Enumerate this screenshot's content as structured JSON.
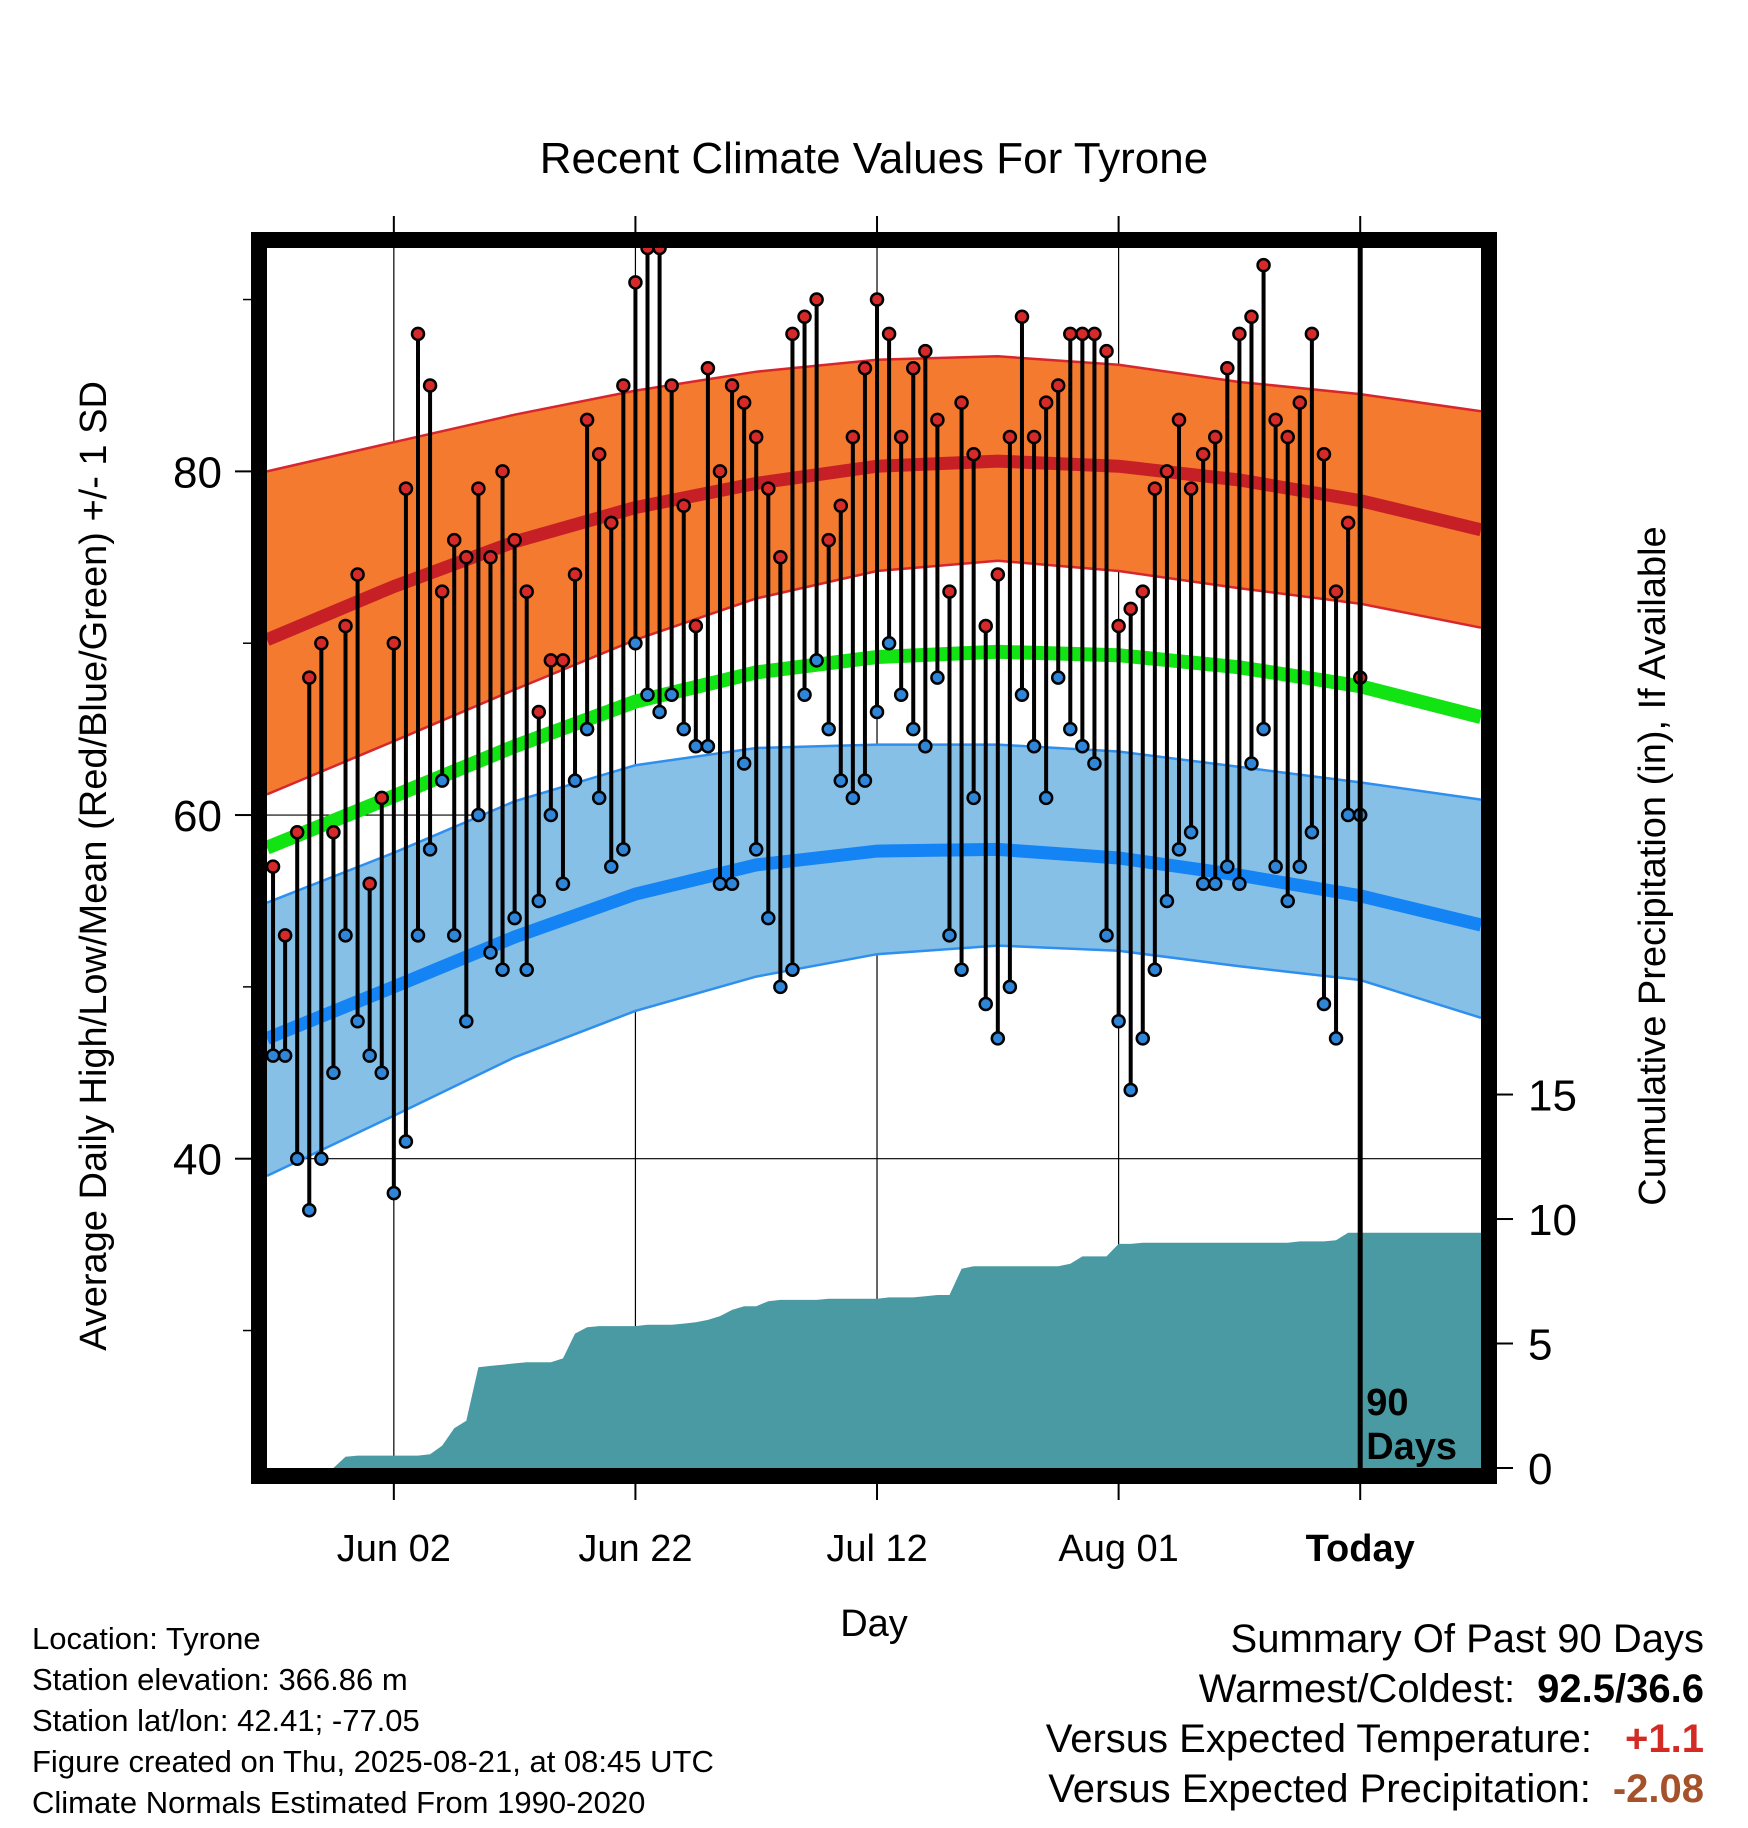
{
  "chart_data": {
    "type": "line",
    "title": "Recent Climate Values For Tyrone",
    "xlabel": "Day",
    "ylabel": "Average Daily High/Low/Mean (Red/Blue/Green) +/- 1 SD",
    "y2label": "Cumulative Precipitation (in), If Available",
    "x_ticks": [
      "Jun 02",
      "Jun 22",
      "Jul 12",
      "Aug 01",
      "Today"
    ],
    "x_tick_days": [
      10,
      30,
      50,
      70,
      90
    ],
    "x_range_days": [
      -0.5,
      100
    ],
    "ylim": [
      22,
      93
    ],
    "y_ticks": [
      40,
      60,
      80
    ],
    "y2lim": [
      0,
      49
    ],
    "y2_ticks": [
      0,
      5,
      10,
      15
    ],
    "marker_label": "90 Days",
    "grid": true,
    "normals": {
      "days": [
        -0.5,
        10,
        20,
        30,
        40,
        50,
        60,
        70,
        80,
        90,
        100
      ],
      "high_mean": [
        70.2,
        73.3,
        75.9,
        77.9,
        79.3,
        80.3,
        80.6,
        80.3,
        79.5,
        78.3,
        76.6
      ],
      "high_upper": [
        80.0,
        81.7,
        83.3,
        84.7,
        85.8,
        86.5,
        86.7,
        86.2,
        85.2,
        84.5,
        83.5
      ],
      "high_lower": [
        61.2,
        64.3,
        67.3,
        70.2,
        72.6,
        74.2,
        74.8,
        74.2,
        73.2,
        72.3,
        70.9
      ],
      "mean": [
        58.1,
        61.1,
        64.0,
        66.6,
        68.3,
        69.2,
        69.5,
        69.3,
        68.6,
        67.5,
        65.7
      ],
      "low_mean": [
        47.0,
        50.0,
        52.9,
        55.4,
        57.1,
        57.9,
        58.0,
        57.5,
        56.5,
        55.3,
        53.6
      ],
      "low_upper": [
        54.9,
        57.8,
        60.8,
        62.9,
        63.9,
        64.1,
        64.1,
        63.7,
        62.8,
        61.9,
        60.9
      ],
      "low_lower": [
        39.0,
        42.5,
        45.9,
        48.6,
        50.6,
        51.9,
        52.4,
        52.1,
        51.2,
        50.4,
        48.2
      ]
    },
    "daily_high": [
      57,
      53,
      59,
      68,
      70,
      59,
      71,
      74,
      56,
      61,
      70,
      79,
      88,
      85,
      73,
      76,
      75,
      79,
      75,
      80,
      76,
      73,
      66,
      69,
      69,
      74,
      83,
      81,
      77,
      85,
      91,
      93,
      93,
      85,
      78,
      71,
      86,
      80,
      85,
      84,
      82,
      79,
      75,
      88,
      89,
      90,
      76,
      78,
      82,
      86,
      90,
      88,
      82,
      86,
      87,
      83,
      73,
      84,
      81,
      71,
      74,
      82,
      89,
      82,
      84,
      85,
      88,
      88,
      88,
      87,
      71,
      72,
      73,
      79,
      80,
      83,
      79,
      81,
      82,
      86,
      88,
      89,
      92,
      83,
      82,
      84,
      88,
      81,
      73,
      77,
      68
    ],
    "daily_low": [
      46,
      46,
      40,
      37,
      40,
      45,
      53,
      48,
      46,
      45,
      38,
      41,
      53,
      58,
      62,
      53,
      48,
      60,
      52,
      51,
      54,
      51,
      55,
      60,
      56,
      62,
      65,
      61,
      57,
      58,
      70,
      67,
      66,
      67,
      65,
      64,
      64,
      56,
      56,
      63,
      58,
      54,
      50,
      51,
      67,
      69,
      65,
      62,
      61,
      62,
      66,
      70,
      67,
      65,
      64,
      68,
      53,
      51,
      61,
      49,
      47,
      50,
      67,
      64,
      61,
      68,
      65,
      64,
      63,
      53,
      48,
      44,
      47,
      51,
      55,
      58,
      59,
      56,
      56,
      57,
      56,
      63,
      65,
      57,
      55,
      57,
      59,
      49,
      47,
      60,
      60
    ],
    "cumulative_precip": [
      0,
      0,
      0,
      0,
      0,
      0,
      0.45,
      0.5,
      0.5,
      0.5,
      0.5,
      0.5,
      0.5,
      0.55,
      0.9,
      1.6,
      1.9,
      4.05,
      4.1,
      4.15,
      4.2,
      4.25,
      4.25,
      4.25,
      4.4,
      5.4,
      5.65,
      5.7,
      5.7,
      5.7,
      5.7,
      5.75,
      5.75,
      5.75,
      5.8,
      5.85,
      5.95,
      6.1,
      6.35,
      6.5,
      6.5,
      6.7,
      6.75,
      6.75,
      6.75,
      6.75,
      6.8,
      6.8,
      6.8,
      6.8,
      6.8,
      6.85,
      6.85,
      6.85,
      6.9,
      6.95,
      6.95,
      8.0,
      8.1,
      8.1,
      8.1,
      8.1,
      8.1,
      8.1,
      8.1,
      8.1,
      8.2,
      8.5,
      8.5,
      8.5,
      9.0,
      9.0,
      9.05,
      9.05,
      9.05,
      9.05,
      9.05,
      9.05,
      9.05,
      9.05,
      9.05,
      9.05,
      9.05,
      9.05,
      9.05,
      9.1,
      9.1,
      9.1,
      9.15,
      9.45,
      9.45,
      9.45,
      9.45,
      9.45,
      9.45,
      9.45,
      9.45,
      9.45,
      9.45,
      9.45,
      9.45
    ],
    "colors": {
      "high_band": "#f37a2e",
      "high_edge": "#d7262c",
      "high_mean": "#c62026",
      "mean": "#12e312",
      "low_band": "#86c0e6",
      "low_edge": "#2e8fef",
      "low_mean": "#1484f4",
      "precip": "#4a9aa3",
      "high_dot": "#d62a2a",
      "low_dot": "#2f86d8"
    }
  },
  "footer": {
    "location": "Location: Tyrone",
    "elevation": "Station elevation: 366.86 m",
    "latlon": "Station lat/lon: 42.41; -77.05",
    "created": "Figure created on Thu, 2025-08-21, at 08:45 UTC",
    "normals": "Climate Normals Estimated From 1990-2020"
  },
  "summary": {
    "title": "Summary Of Past 90 Days",
    "warm_cold_label": "Warmest/Coldest:",
    "warm_cold_value": "92.5/36.6",
    "temp_label": "Versus Expected Temperature:",
    "temp_value": "+1.1",
    "temp_color": "#d32a24",
    "precip_label": "Versus Expected Precipitation:",
    "precip_value": "-2.08",
    "precip_color": "#a5522a"
  }
}
